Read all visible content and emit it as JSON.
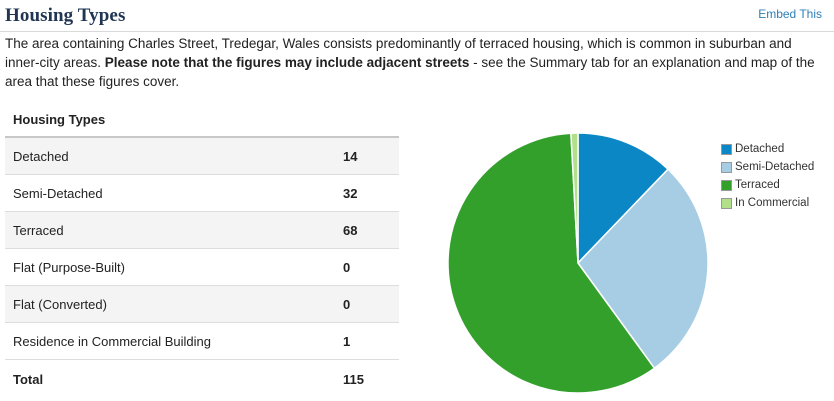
{
  "header": {
    "title": "Housing Types",
    "embed_label": "Embed This"
  },
  "description": {
    "part1": "The area containing Charles Street, Tredegar, Wales consists predominantly of terraced housing, which is common in suburban and inner-city areas. ",
    "bold": "Please note that the figures may include adjacent streets",
    "part2": " - see the Summary tab for an explanation and map of the area that these figures cover."
  },
  "table": {
    "header": "Housing Types",
    "rows": [
      {
        "label": "Detached",
        "value": "14"
      },
      {
        "label": "Semi-Detached",
        "value": "32"
      },
      {
        "label": "Terraced",
        "value": "68"
      },
      {
        "label": "Flat (Purpose-Built)",
        "value": "0"
      },
      {
        "label": "Flat (Converted)",
        "value": "0"
      },
      {
        "label": "Residence in Commercial Building",
        "value": "1"
      }
    ],
    "total": {
      "label": "Total",
      "value": "115"
    }
  },
  "chart_data": {
    "type": "pie",
    "categories": [
      "Detached",
      "Semi-Detached",
      "Terraced",
      "In Commercial"
    ],
    "values": [
      14,
      32,
      68,
      1
    ],
    "colors": [
      "#0b87c5",
      "#a6cde3",
      "#33a02c",
      "#b2df8a"
    ],
    "legend_position": "right"
  }
}
